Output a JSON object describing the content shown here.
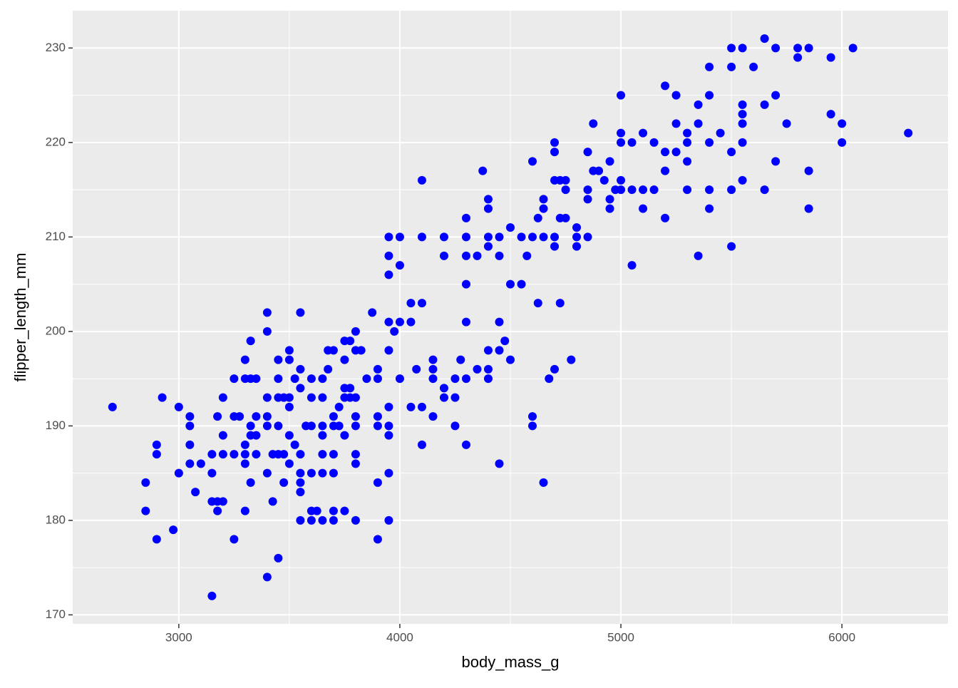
{
  "chart_data": {
    "type": "scatter",
    "x_label": "body_mass_g",
    "y_label": "flipper_length_mm",
    "color": "#0000ff",
    "x": [
      2700,
      2850,
      2850,
      2900,
      2900,
      2900,
      2925,
      2975,
      3000,
      3000,
      3050,
      3050,
      3050,
      3050,
      3075,
      3100,
      3150,
      3150,
      3150,
      3150,
      3175,
      3175,
      3175,
      3200,
      3200,
      3200,
      3200,
      3250,
      3250,
      3250,
      3250,
      3275,
      3300,
      3300,
      3300,
      3300,
      3300,
      3300,
      3325,
      3325,
      3325,
      3325,
      3325,
      3350,
      3350,
      3350,
      3350,
      3400,
      3400,
      3400,
      3400,
      3400,
      3400,
      3400,
      3425,
      3425,
      3450,
      3450,
      3450,
      3450,
      3450,
      3450,
      3475,
      3475,
      3475,
      3500,
      3500,
      3500,
      3500,
      3500,
      3500,
      3525,
      3525,
      3550,
      3550,
      3550,
      3550,
      3550,
      3550,
      3550,
      3550,
      3575,
      3600,
      3600,
      3600,
      3600,
      3600,
      3600,
      3625,
      3650,
      3650,
      3650,
      3650,
      3650,
      3650,
      3650,
      3675,
      3675,
      3700,
      3700,
      3700,
      3700,
      3700,
      3700,
      3700,
      3725,
      3725,
      3750,
      3750,
      3750,
      3750,
      3750,
      3750,
      3775,
      3775,
      3775,
      3800,
      3800,
      3800,
      3800,
      3800,
      3800,
      3800,
      3800,
      3825,
      3850,
      3875,
      3900,
      3900,
      3900,
      3900,
      3900,
      3900,
      3950,
      3950,
      3950,
      3950,
      3950,
      3950,
      3950,
      3950,
      3950,
      3950,
      3975,
      4000,
      4000,
      4000,
      4000,
      4050,
      4050,
      4050,
      4075,
      4100,
      4100,
      4100,
      4100,
      4100,
      4150,
      4150,
      4150,
      4150,
      4200,
      4200,
      4200,
      4200,
      4250,
      4250,
      4250,
      4275,
      4300,
      4300,
      4300,
      4300,
      4300,
      4300,
      4300,
      4350,
      4350,
      4375,
      4400,
      4400,
      4400,
      4400,
      4400,
      4400,
      4400,
      4450,
      4450,
      4450,
      4450,
      4450,
      4475,
      4500,
      4500,
      4500,
      4550,
      4550,
      4575,
      4600,
      4600,
      4600,
      4600,
      4625,
      4625,
      4650,
      4650,
      4650,
      4650,
      4675,
      4700,
      4700,
      4700,
      4700,
      4700,
      4700,
      4725,
      4725,
      4725,
      4750,
      4750,
      4750,
      4775,
      4800,
      4800,
      4800,
      4850,
      4850,
      4850,
      4850,
      4875,
      4875,
      4900,
      4925,
      4950,
      4950,
      4950,
      4975,
      5000,
      5000,
      5000,
      5000,
      5000,
      5050,
      5050,
      5050,
      5100,
      5100,
      5100,
      5150,
      5150,
      5200,
      5200,
      5200,
      5200,
      5250,
      5250,
      5250,
      5300,
      5300,
      5300,
      5300,
      5350,
      5350,
      5350,
      5400,
      5400,
      5400,
      5400,
      5400,
      5450,
      5500,
      5500,
      5500,
      5500,
      5500,
      5550,
      5550,
      5550,
      5550,
      5550,
      5550,
      5600,
      5650,
      5650,
      5650,
      5700,
      5700,
      5700,
      5750,
      5800,
      5800,
      5850,
      5850,
      5850,
      5950,
      5950,
      6000,
      6000,
      6050,
      6300
    ],
    "values": [
      192,
      184,
      181,
      188,
      187,
      178,
      193,
      179,
      192,
      185,
      191,
      190,
      188,
      186,
      183,
      186,
      187,
      185,
      182,
      172,
      191,
      182,
      181,
      193,
      189,
      187,
      182,
      195,
      191,
      187,
      178,
      191,
      197,
      195,
      188,
      187,
      186,
      181,
      199,
      195,
      190,
      189,
      184,
      195,
      191,
      189,
      187,
      202,
      200,
      193,
      191,
      190,
      185,
      174,
      187,
      182,
      197,
      195,
      193,
      190,
      187,
      176,
      193,
      187,
      184,
      198,
      197,
      193,
      192,
      189,
      186,
      195,
      188,
      202,
      196,
      194,
      187,
      185,
      184,
      183,
      180,
      190,
      195,
      193,
      190,
      185,
      181,
      180,
      181,
      195,
      193,
      190,
      189,
      187,
      185,
      180,
      196,
      198,
      198,
      191,
      190,
      187,
      185,
      181,
      180,
      192,
      190,
      199,
      197,
      194,
      193,
      189,
      181,
      199,
      194,
      193,
      200,
      198,
      193,
      191,
      190,
      187,
      186,
      180,
      198,
      195,
      202,
      196,
      195,
      191,
      190,
      184,
      178,
      210,
      208,
      206,
      201,
      198,
      192,
      190,
      189,
      185,
      180,
      200,
      210,
      207,
      201,
      195,
      203,
      201,
      192,
      196,
      216,
      210,
      203,
      192,
      188,
      197,
      196,
      195,
      191,
      210,
      208,
      194,
      193,
      195,
      193,
      190,
      197,
      212,
      210,
      208,
      205,
      201,
      195,
      188,
      208,
      196,
      217,
      214,
      213,
      210,
      209,
      198,
      196,
      195,
      210,
      208,
      201,
      198,
      186,
      199,
      211,
      205,
      197,
      210,
      205,
      208,
      218,
      210,
      191,
      190,
      212,
      203,
      214,
      213,
      210,
      184,
      195,
      220,
      219,
      216,
      210,
      209,
      196,
      216,
      212,
      203,
      216,
      215,
      212,
      197,
      211,
      210,
      209,
      219,
      215,
      214,
      210,
      222,
      217,
      217,
      216,
      218,
      214,
      213,
      215,
      225,
      221,
      220,
      216,
      215,
      220,
      215,
      207,
      221,
      215,
      213,
      220,
      215,
      226,
      219,
      217,
      212,
      225,
      222,
      219,
      221,
      220,
      218,
      215,
      224,
      222,
      208,
      228,
      225,
      220,
      215,
      213,
      221,
      230,
      228,
      219,
      215,
      209,
      230,
      224,
      223,
      222,
      220,
      216,
      228,
      231,
      224,
      215,
      230,
      225,
      218,
      222,
      230,
      229,
      230,
      217,
      213,
      229,
      223,
      222,
      220,
      230,
      221
    ],
    "xlim": [
      2520,
      6480
    ],
    "xticks": [
      3000,
      4000,
      5000,
      6000
    ],
    "ylim": [
      169.05,
      233.95
    ],
    "yticks": [
      170,
      180,
      190,
      200,
      210,
      220,
      230
    ],
    "grid": true
  }
}
